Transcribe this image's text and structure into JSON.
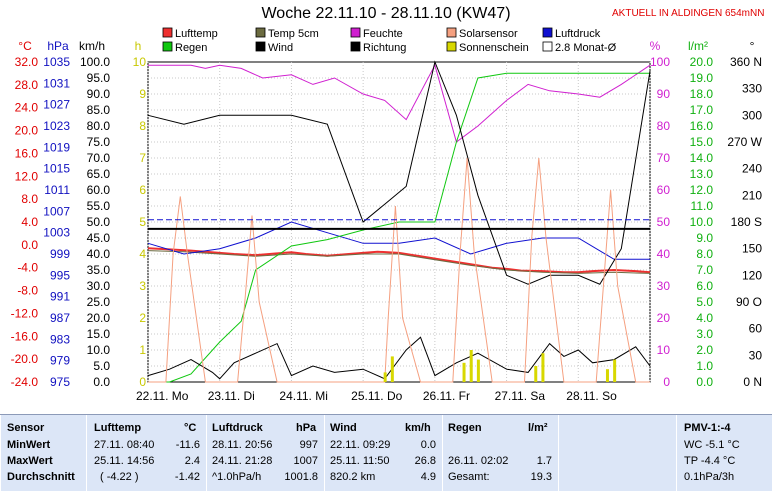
{
  "header": {
    "title": "Woche 22.11.10 - 28.11.10 (KW47)",
    "link": "AKTUELL IN ALDINGEN 654mNN"
  },
  "chart_data": {
    "type": "line",
    "title": "Woche 22.11.10 - 28.11.10 (KW47)",
    "x_ticks": [
      "22.11. Mo",
      "23.11. Di",
      "24.11. Mi",
      "25.11. Do",
      "26.11. Fr",
      "27.11. Sa",
      "28.11. So"
    ],
    "axes": {
      "temp_c": {
        "unit": "°C",
        "ticks": [
          "32.0",
          "28.0",
          "24.0",
          "20.0",
          "16.0",
          "12.0",
          "8.0",
          "4.0",
          "0.0",
          "-4.0",
          "-8.0",
          "-12.0",
          "-16.0",
          "-20.0",
          "-24.0"
        ],
        "range": [
          -24,
          32
        ]
      },
      "pressure_hpa": {
        "unit": "hPa",
        "ticks": [
          "1035",
          "1031",
          "1027",
          "1023",
          "1019",
          "1015",
          "1011",
          "1007",
          "1003",
          "999",
          "995",
          "991",
          "987",
          "983",
          "979",
          "975"
        ],
        "range": [
          975,
          1035
        ]
      },
      "wind_kmh": {
        "unit": "km/h",
        "ticks": [
          "100.0",
          "95.0",
          "90.0",
          "85.0",
          "80.0",
          "75.0",
          "70.0",
          "65.0",
          "60.0",
          "55.0",
          "50.0",
          "45.0",
          "40.0",
          "35.0",
          "30.0",
          "25.0",
          "20.0",
          "15.0",
          "10.0",
          "5.0",
          "0.0"
        ],
        "range": [
          0,
          100
        ]
      },
      "sun_h": {
        "unit": "h",
        "ticks": [
          "10",
          "9",
          "8",
          "7",
          "6",
          "5",
          "4",
          "3",
          "2",
          "1",
          "0"
        ],
        "range": [
          0,
          10
        ]
      },
      "humidity_pct": {
        "unit": "%",
        "ticks": [
          "100",
          "90",
          "80",
          "70",
          "60",
          "50",
          "40",
          "30",
          "20",
          "10",
          "0"
        ],
        "range": [
          0,
          100
        ]
      },
      "rain_lm2": {
        "unit": "l/m²",
        "ticks": [
          "20.0",
          "19.0",
          "18.0",
          "17.0",
          "16.0",
          "15.0",
          "14.0",
          "13.0",
          "12.0",
          "11.0",
          "10.0",
          "9.0",
          "8.0",
          "7.0",
          "6.0",
          "5.0",
          "4.0",
          "3.0",
          "2.0",
          "1.0",
          "0.0"
        ],
        "range": [
          0,
          20
        ]
      },
      "direction_deg": {
        "unit": "°",
        "ticks": [
          "360 N",
          "330",
          "300",
          "270 W",
          "240",
          "210",
          "180 S",
          "150",
          "120",
          "90 O",
          "60",
          "30",
          "0 N"
        ],
        "range": [
          0,
          360
        ]
      }
    },
    "legend": [
      {
        "name": "Lufttemp",
        "color": "#ee3030"
      },
      {
        "name": "Temp 5cm",
        "color": "#6b6b40"
      },
      {
        "name": "Feuchte",
        "color": "#d020d0"
      },
      {
        "name": "Solarsensor",
        "color": "#f5a080"
      },
      {
        "name": "Luftdruck",
        "color": "#1010d0"
      },
      {
        "name": "Regen",
        "color": "#10c810"
      },
      {
        "name": "Wind",
        "color": "#000000"
      },
      {
        "name": "Richtung",
        "color": "#000000"
      },
      {
        "name": "Sonnenschein",
        "color": "#d8d800"
      },
      {
        "name": "2.8 Monat-Ø",
        "color": "#000000"
      }
    ],
    "series": [
      {
        "key": "lufttemp",
        "axis": "temp_c",
        "color": "#ee3030",
        "x": [
          0,
          0.3,
          0.6,
          1.0,
          1.2,
          1.5,
          1.8,
          2.0,
          2.2,
          2.5,
          2.8,
          3.0,
          3.2,
          3.5,
          3.8,
          4.0,
          4.2,
          4.5,
          4.8,
          5.0,
          5.2,
          5.5,
          5.8,
          6.0,
          6.2,
          6.5,
          6.8,
          7.0
        ],
        "values": [
          -0.6,
          -0.8,
          -1.0,
          -1.4,
          -1.6,
          -1.8,
          -1.5,
          -1.3,
          -1.6,
          -1.9,
          -1.6,
          -1.4,
          -1.2,
          -1.4,
          -2.0,
          -2.4,
          -2.8,
          -3.4,
          -4.0,
          -4.2,
          -4.5,
          -4.6,
          -4.8,
          -4.8,
          -4.6,
          -4.4,
          -4.6,
          -4.8
        ]
      },
      {
        "key": "temp5cm",
        "axis": "temp_c",
        "color": "#6b6b40",
        "x": [
          0,
          0.5,
          1.0,
          1.5,
          2.0,
          2.5,
          3.0,
          3.5,
          4.0,
          4.5,
          5.0,
          5.5,
          6.0,
          6.5,
          7.0
        ],
        "values": [
          -1.0,
          -1.2,
          -1.6,
          -2.0,
          -1.6,
          -2.0,
          -1.6,
          -1.6,
          -2.6,
          -3.6,
          -4.4,
          -4.8,
          -5.0,
          -4.8,
          -5.0
        ]
      },
      {
        "key": "feuchte",
        "axis": "humidity_pct",
        "color": "#d020d0",
        "x": [
          0,
          0.3,
          0.6,
          0.8,
          1.0,
          1.3,
          1.6,
          2.0,
          2.3,
          2.6,
          3.0,
          3.3,
          3.6,
          4.0,
          4.3,
          4.6,
          5.0,
          5.3,
          5.6,
          6.0,
          6.3,
          6.6,
          7.0
        ],
        "values": [
          99,
          99,
          99,
          98,
          99,
          98,
          95,
          96,
          93,
          95,
          90,
          88,
          82,
          99,
          75,
          80,
          88,
          93,
          91,
          90,
          89,
          93,
          99
        ]
      },
      {
        "key": "luftdruck",
        "axis": "pressure_hpa",
        "color": "#1010d0",
        "x": [
          0,
          0.5,
          1.0,
          1.5,
          2.0,
          2.5,
          3.0,
          3.5,
          4.0,
          4.5,
          5.0,
          5.5,
          6.0,
          6.5,
          7.0
        ],
        "values": [
          1001,
          999,
          1000,
          1002,
          1005,
          1003,
          1001,
          1001,
          1002,
          999,
          1001,
          1002,
          1002,
          998,
          998
        ]
      },
      {
        "key": "regen",
        "axis": "rain_lm2",
        "color": "#10c810",
        "x": [
          0,
          0.3,
          0.6,
          1.0,
          1.3,
          1.5,
          2.0,
          2.5,
          3.0,
          3.5,
          4.0,
          4.3,
          4.6,
          5.0,
          5.5,
          6.0,
          6.5,
          7.0
        ],
        "values": [
          0,
          0,
          0.5,
          2.5,
          3.8,
          7.0,
          8.5,
          8.9,
          9.5,
          10,
          10,
          15,
          19,
          19.3,
          19.3,
          19.3,
          19.3,
          19.3
        ]
      },
      {
        "key": "wind",
        "axis": "wind_kmh",
        "color": "#000000",
        "x": [
          0,
          0.3,
          0.6,
          0.9,
          1.0,
          1.2,
          1.5,
          1.8,
          2.0,
          2.3,
          2.6,
          3.0,
          3.3,
          3.6,
          3.8,
          4.0,
          4.3,
          4.6,
          5.0,
          5.3,
          5.6,
          5.8,
          6.0,
          6.2,
          6.5,
          6.8,
          7.0
        ],
        "values": [
          2,
          4,
          7,
          3,
          1,
          6,
          9,
          12,
          2,
          5,
          3,
          4,
          1,
          10,
          14,
          2,
          6,
          9,
          4,
          3,
          12,
          8,
          10,
          6,
          7,
          11,
          5
        ]
      },
      {
        "key": "richtung",
        "axis": "direction_deg",
        "color": "#000000",
        "x": [
          0,
          0.5,
          1.0,
          1.5,
          2.0,
          2.5,
          3.0,
          3.3,
          3.6,
          4.0,
          4.3,
          4.6,
          5.0,
          5.3,
          5.6,
          6.0,
          6.3,
          6.6,
          7.0
        ],
        "values": [
          300,
          290,
          300,
          300,
          300,
          290,
          180,
          200,
          220,
          360,
          300,
          210,
          120,
          110,
          120,
          120,
          110,
          150,
          350
        ]
      },
      {
        "key": "solarsensor",
        "axis": "humidity_pct",
        "color": "#f5a080",
        "x": [
          0,
          0.25,
          0.35,
          0.45,
          0.55,
          0.8,
          1.0,
          1.25,
          1.35,
          1.45,
          1.55,
          1.8,
          2.0,
          3.0,
          3.3,
          3.35,
          3.45,
          3.55,
          3.8,
          4.0,
          4.25,
          4.35,
          4.45,
          4.55,
          4.8,
          5.0,
          5.25,
          5.35,
          5.45,
          5.55,
          5.8,
          6.0,
          6.25,
          6.35,
          6.45,
          6.55,
          6.8,
          7.0
        ],
        "values": [
          0,
          0,
          40,
          58,
          40,
          0,
          0,
          0,
          25,
          52,
          25,
          0,
          0,
          0,
          0,
          20,
          55,
          20,
          0,
          0,
          0,
          40,
          70,
          40,
          0,
          0,
          0,
          45,
          70,
          45,
          0,
          0,
          0,
          30,
          60,
          30,
          0,
          0
        ]
      },
      {
        "key": "sonnenschein",
        "axis": "sun_h",
        "color": "#d8d800",
        "x": [
          3.3,
          3.4,
          4.4,
          4.5,
          4.6,
          5.4,
          5.5,
          6.4,
          6.5
        ],
        "values": [
          0.3,
          0.8,
          0.6,
          1.0,
          0.7,
          0.5,
          0.9,
          0.4,
          0.7
        ]
      }
    ],
    "reference_line": {
      "name": "2.8 Monat-Ø",
      "axis": "temp_c",
      "value": 2.8
    }
  },
  "table": {
    "sensor": {
      "header": "Sensor",
      "rows": [
        "MinWert",
        "MaxWert",
        "Durchschnitt"
      ]
    },
    "lufttemp": {
      "header": "Lufttemp",
      "unit": "°C",
      "rows": [
        [
          "27.11.  08:40",
          "-11.6"
        ],
        [
          "25.11.  14:56",
          "2.4"
        ],
        [
          "( -4.22 )",
          "-1.42"
        ]
      ]
    },
    "luftdruck": {
      "header": "Luftdruck",
      "unit": "hPa",
      "rows": [
        [
          "28.11.  20:56",
          "997"
        ],
        [
          "24.11.  21:28",
          "1007"
        ],
        [
          "^1.0hPa/h",
          "1001.8"
        ]
      ]
    },
    "wind": {
      "header": "Wind",
      "unit": "km/h",
      "rows": [
        [
          "22.11.  09:29",
          "0.0"
        ],
        [
          "25.11.  11:50",
          "26.8"
        ],
        [
          "820.2 km",
          "4.9"
        ]
      ]
    },
    "regen": {
      "header": "Regen",
      "unit": "l/m²",
      "rows": [
        [
          "",
          ""
        ],
        [
          "26.11.  02:02",
          "1.7"
        ],
        [
          "Gesamt:",
          "19.3"
        ]
      ]
    },
    "pmv": {
      "header": "PMV-1:-4",
      "rows": [
        "WC -5.1 °C",
        "TP -4.4 °C",
        "0.1hPa/3h"
      ]
    }
  }
}
